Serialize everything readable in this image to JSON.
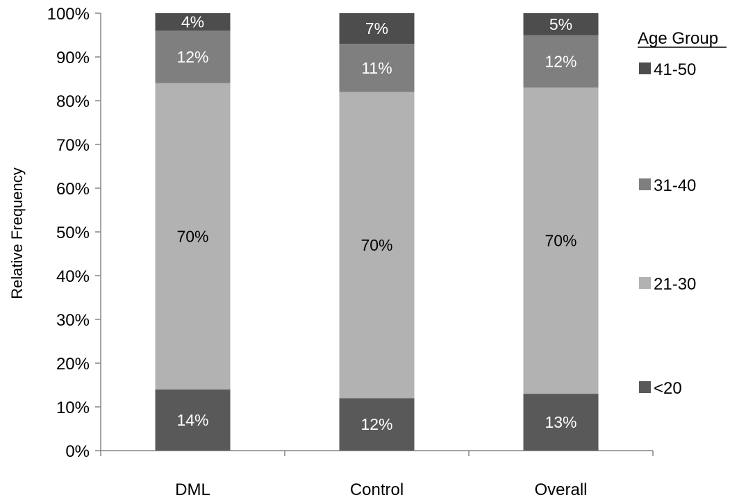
{
  "chart_data": {
    "type": "bar",
    "stacked": true,
    "categories": [
      "DML",
      "Control",
      "Overall"
    ],
    "series": [
      {
        "name": "<20",
        "values": [
          14,
          12,
          13
        ],
        "labels": [
          "14%",
          "12%",
          "13%"
        ],
        "color": "#595959",
        "label_color": "#ffffff"
      },
      {
        "name": "21-30",
        "values": [
          70,
          70,
          70
        ],
        "labels": [
          "70%",
          "70%",
          "70%"
        ],
        "color": "#b2b2b2",
        "label_color": "#000000"
      },
      {
        "name": "31-40",
        "values": [
          12,
          11,
          12
        ],
        "labels": [
          "12%",
          "11%",
          "12%"
        ],
        "color": "#7f7f7f",
        "label_color": "#ffffff"
      },
      {
        "name": "41-50",
        "values": [
          4,
          7,
          5
        ],
        "labels": [
          "4%",
          "7%",
          "5%"
        ],
        "color": "#4d4d4d",
        "label_color": "#ffffff"
      }
    ],
    "ylabel": "Relative Frequency",
    "ylim": [
      0,
      100
    ],
    "yticks": [
      "0%",
      "10%",
      "20%",
      "30%",
      "40%",
      "50%",
      "60%",
      "70%",
      "80%",
      "90%",
      "100%"
    ],
    "legend_title": "Age Group",
    "legend_order": [
      "41-50",
      "31-40",
      "21-30",
      "<20"
    ],
    "legend_position": "right",
    "grid": false
  }
}
